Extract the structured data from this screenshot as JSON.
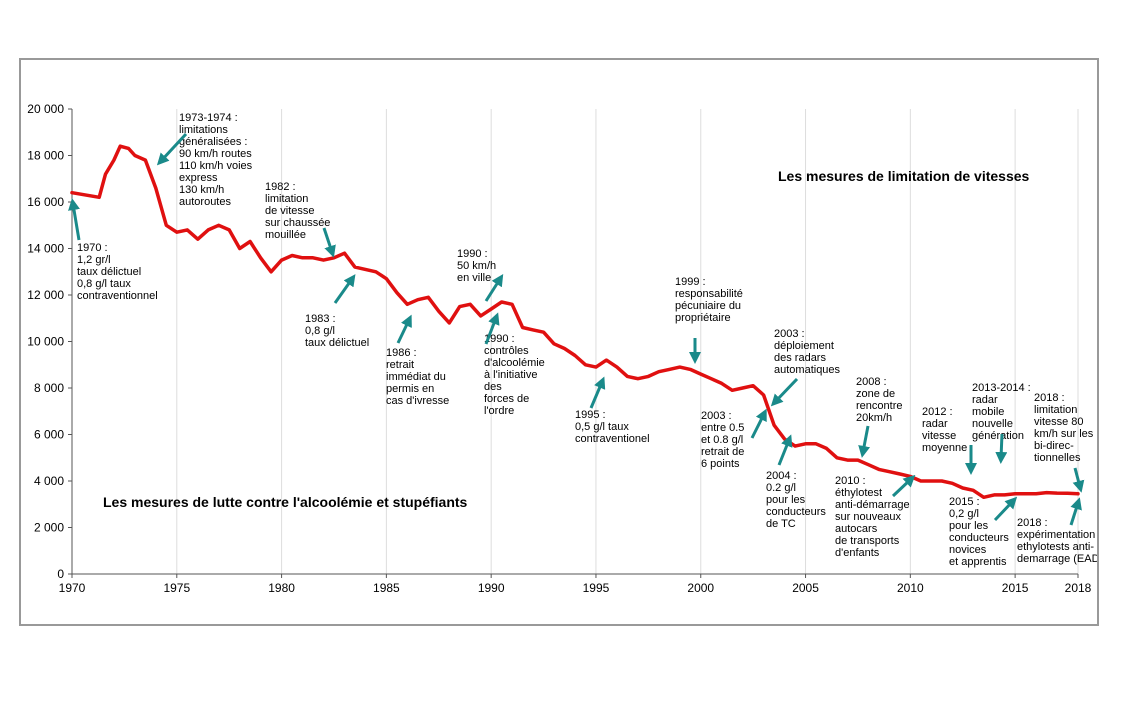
{
  "chart_data": {
    "type": "line",
    "title": "",
    "xlabel": "",
    "ylabel": "",
    "xlim": [
      1970,
      2018
    ],
    "ylim": [
      0,
      20000
    ],
    "grid": "vertical gridlines at x ticks",
    "line_color": "#e01010",
    "arrow_color": "#1a8a8a",
    "x_ticks": [
      "1970",
      "1975",
      "1980",
      "1985",
      "1990",
      "1995",
      "2000",
      "2005",
      "2010",
      "2015",
      "2018"
    ],
    "y_ticks": [
      "0",
      "2 000",
      "4 000",
      "6 000",
      "8 000",
      "10 000",
      "12 000",
      "14 000",
      "16 000",
      "18 000",
      "20 000"
    ],
    "headings": {
      "speed": "Les mesures de limitation de vitesses",
      "alcohol": "Les mesures de lutte contre l'alcoolémie et stupéfiants"
    },
    "series": [
      {
        "x": [
          1970,
          1971.3,
          1971.6,
          1972,
          1972.3,
          1972.7,
          1973,
          1973.5,
          1974,
          1974.5,
          1975,
          1975.5,
          1976,
          1976.5,
          1977,
          1977.5,
          1978,
          1978.5,
          1979,
          1979.5,
          1980,
          1980.5,
          1981,
          1981.5,
          1982,
          1982.5,
          1983,
          1983.5,
          1984,
          1984.5,
          1985,
          1985.5,
          1986,
          1986.5,
          1987,
          1987.5,
          1988,
          1988.5,
          1989,
          1989.5,
          1990,
          1990.5,
          1991,
          1991.5,
          1992,
          1992.5,
          1993,
          1993.5,
          1994,
          1994.5,
          1995,
          1995.5,
          1996,
          1996.5,
          1997,
          1997.5,
          1998,
          1998.5,
          1999,
          1999.5,
          2000,
          2000.5,
          2001,
          2001.5,
          2002,
          2002.5,
          2003,
          2003.5,
          2004,
          2004.5,
          2005,
          2005.5,
          2006,
          2006.5,
          2007,
          2007.5,
          2008,
          2008.5,
          2009,
          2009.5,
          2010,
          2010.5,
          2011,
          2011.5,
          2012,
          2012.5,
          2013,
          2013.5,
          2014,
          2014.5,
          2015,
          2015.5,
          2016,
          2016.5,
          2017,
          2017.5,
          2018
        ],
        "y": [
          16400,
          16200,
          17200,
          17800,
          18400,
          18300,
          18000,
          17800,
          16600,
          15000,
          14700,
          14800,
          14400,
          14800,
          15000,
          14800,
          14000,
          14300,
          13600,
          13000,
          13500,
          13700,
          13600,
          13600,
          13500,
          13600,
          13800,
          13200,
          13100,
          13000,
          12700,
          12100,
          11600,
          11800,
          11900,
          11300,
          10800,
          11500,
          11600,
          11100,
          11400,
          11700,
          11600,
          10600,
          10500,
          10400,
          9900,
          9700,
          9400,
          9000,
          8900,
          9200,
          8900,
          8500,
          8400,
          8500,
          8700,
          8800,
          8900,
          8800,
          8600,
          8400,
          8200,
          7900,
          8000,
          8100,
          7700,
          6400,
          5800,
          5500,
          5600,
          5600,
          5400,
          5000,
          4900,
          4900,
          4700,
          4500,
          4400,
          4300,
          4200,
          4000,
          4000,
          4000,
          3900,
          3700,
          3600,
          3300,
          3400,
          3400,
          3450,
          3450,
          3450,
          3500,
          3480,
          3470,
          3450
        ]
      }
    ],
    "annotations": [
      {
        "text": [
          "1970 :",
          "1,2 gr/l",
          "taux délictuel",
          "0,8 g/l  taux",
          "contraventionnel"
        ]
      },
      {
        "text": [
          "1973-1974 :",
          "limitations",
          "généralisées :",
          "90 km/h routes",
          "110 km/h voies",
          "express",
          "130 km/h",
          "autoroutes"
        ]
      },
      {
        "text": [
          "1982 :",
          "limitation",
          "de vitesse",
          "sur chaussée",
          "mouillée"
        ]
      },
      {
        "text": [
          "1983 :",
          "0,8 g/l",
          "taux délictuel"
        ]
      },
      {
        "text": [
          "1986 :",
          "retrait",
          "immédiat du",
          "permis en",
          "cas d'ivresse"
        ]
      },
      {
        "text": [
          "1990 :",
          "50 km/h",
          "en ville"
        ]
      },
      {
        "text": [
          "1990 :",
          "contrôles",
          "d'alcoolémie",
          "à l'initiative",
          "des",
          "forces de",
          "l'ordre"
        ]
      },
      {
        "text": [
          "1995 :",
          "0,5 g/l  taux",
          "contraventionel"
        ]
      },
      {
        "text": [
          "1999 :",
          "responsabilité",
          "pécuniaire du",
          "propriétaire"
        ]
      },
      {
        "text": [
          "2003 :",
          "déploiement",
          "des  radars",
          "automatiques"
        ]
      },
      {
        "text": [
          "2003 :",
          "entre 0.5",
          "et 0.8 g/l",
          "retrait de",
          "6 points"
        ]
      },
      {
        "text": [
          "2004 :",
          "0.2 g/l",
          "pour les",
          "conducteurs",
          "de TC"
        ]
      },
      {
        "text": [
          "2008 :",
          "zone de",
          "rencontre",
          "20km/h"
        ]
      },
      {
        "text": [
          "2010 :",
          "éthylotest",
          "anti-démarrage",
          "sur nouveaux",
          "autocars",
          "de transports",
          "d'enfants"
        ]
      },
      {
        "text": [
          "2012 :",
          "radar",
          "vitesse",
          "moyenne"
        ]
      },
      {
        "text": [
          "2013-2014 :",
          "radar",
          "mobile",
          "nouvelle",
          "génération"
        ]
      },
      {
        "text": [
          "2015 :",
          "0,2 g/l",
          "pour les",
          "conducteurs",
          "novices",
          "et apprentis"
        ]
      },
      {
        "text": [
          "2018 :",
          "limitation",
          "vitesse 80",
          "km/h sur les",
          "bi-direc-",
          "tionnelles"
        ]
      },
      {
        "text": [
          "2018 :",
          "expérimentation",
          "ethylotests  anti-",
          "demarrage (EAD)"
        ]
      }
    ]
  }
}
